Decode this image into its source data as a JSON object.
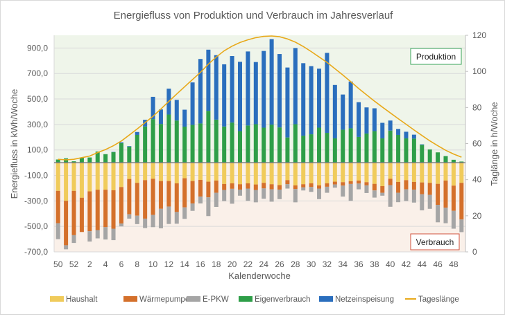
{
  "chart_data": {
    "type": "bar",
    "stacked": true,
    "title": "Energiefluss von Produktion und Verbrauch im Jahresverlauf",
    "xlabel": "Kalenderwoche",
    "ylabel": "Energiefluss in kWh/Woche",
    "ylabel_right": "Taglänge in h/Woche",
    "ylim": [
      -700,
      1000
    ],
    "ylim_right": [
      0,
      120
    ],
    "yticks": [
      "-700,0",
      "-500,0",
      "-300,0",
      "-100,0",
      "100,0",
      "300,0",
      "500,0",
      "700,0",
      "900,0"
    ],
    "yticks_right": [
      "0",
      "20",
      "40",
      "60",
      "80",
      "100",
      "120"
    ],
    "grid": true,
    "legend_position": "bottom",
    "categories": [
      50,
      51,
      52,
      1,
      2,
      3,
      4,
      5,
      6,
      7,
      8,
      9,
      10,
      11,
      12,
      13,
      14,
      15,
      16,
      17,
      18,
      19,
      20,
      21,
      22,
      23,
      24,
      25,
      26,
      27,
      28,
      29,
      30,
      31,
      32,
      33,
      34,
      35,
      36,
      37,
      38,
      39,
      40,
      41,
      42,
      43,
      44,
      45,
      46,
      47,
      48,
      49
    ],
    "xtick_labels": [
      "50",
      "52",
      "2",
      "4",
      "6",
      "8",
      "10",
      "12",
      "14",
      "16",
      "18",
      "20",
      "22",
      "24",
      "26",
      "28",
      "30",
      "32",
      "34",
      "36",
      "38",
      "40",
      "42",
      "44",
      "46",
      "48"
    ],
    "annotations": {
      "production": "Produktion",
      "consumption": "Verbrauch"
    },
    "series": [
      {
        "name": "Haushalt",
        "axis": "left",
        "color": "#f0cb5b",
        "values": [
          -221,
          -299,
          -221,
          -275,
          -225,
          -212,
          -212,
          -216,
          -191,
          -128,
          -158,
          -137,
          -126,
          -144,
          -144,
          -162,
          -122,
          -144,
          -135,
          -149,
          -140,
          -167,
          -162,
          -169,
          -162,
          -171,
          -158,
          -169,
          -176,
          -137,
          -178,
          -169,
          -162,
          -178,
          -162,
          -149,
          -153,
          -146,
          -140,
          -153,
          -166,
          -184,
          -126,
          -151,
          -137,
          -151,
          -155,
          -158,
          -166,
          -140,
          -180,
          -158
        ]
      },
      {
        "name": "Wärmepumpe",
        "axis": "left",
        "color": "#d4702b",
        "values": [
          -254,
          -349,
          -348,
          -269,
          -313,
          -317,
          -294,
          -302,
          -286,
          -277,
          -258,
          -302,
          -284,
          -218,
          -200,
          -225,
          -229,
          -176,
          -131,
          -123,
          -96,
          -47,
          -43,
          -42,
          -41,
          -43,
          -44,
          -40,
          -35,
          -32,
          -29,
          -25,
          -29,
          -25,
          -27,
          -22,
          -27,
          -21,
          -24,
          -25,
          -52,
          -52,
          -50,
          -85,
          -72,
          -61,
          -93,
          -94,
          -165,
          -213,
          -198,
          -288
        ]
      },
      {
        "name": "E-PKW",
        "axis": "left",
        "color": "#a5a5a5",
        "values": [
          -125,
          -32,
          -61,
          0,
          -81,
          -65,
          -97,
          -90,
          -23,
          -34,
          -66,
          -74,
          -96,
          -153,
          -137,
          -92,
          -90,
          -58,
          -54,
          -147,
          -111,
          -88,
          -117,
          -48,
          -96,
          -97,
          -81,
          -97,
          -75,
          -34,
          -104,
          -24,
          -38,
          -83,
          -47,
          -25,
          -86,
          -132,
          -45,
          -60,
          -56,
          -23,
          -170,
          -74,
          -92,
          -101,
          -126,
          -110,
          -137,
          -122,
          -140,
          -99
        ]
      },
      {
        "name": "Eigenverbrauch",
        "axis": "left",
        "color": "#2e9e48",
        "values": [
          25,
          34,
          11,
          40,
          41,
          88,
          67,
          83,
          153,
          126,
          218,
          284,
          342,
          304,
          378,
          331,
          283,
          297,
          308,
          407,
          338,
          284,
          315,
          248,
          292,
          302,
          275,
          299,
          277,
          198,
          302,
          212,
          223,
          275,
          234,
          191,
          259,
          270,
          202,
          229,
          248,
          191,
          252,
          218,
          191,
          189,
          140,
          104,
          81,
          52,
          23,
          9
        ]
      },
      {
        "name": "Netzeinspeisung",
        "axis": "left",
        "color": "#2a6ebd",
        "values": [
          0,
          0,
          0,
          0,
          0,
          0,
          0,
          2,
          7,
          4,
          23,
          53,
          175,
          114,
          203,
          162,
          133,
          333,
          506,
          480,
          506,
          488,
          522,
          544,
          581,
          488,
          602,
          671,
          576,
          549,
          598,
          569,
          535,
          463,
          628,
          419,
          276,
          367,
          273,
          205,
          179,
          122,
          79,
          47,
          52,
          31,
          4,
          0,
          0,
          0,
          0,
          0
        ]
      },
      {
        "name": "Tageslänge",
        "axis": "right",
        "type": "line",
        "color": "#e8a91a",
        "values": [
          51.3,
          51.0,
          51.3,
          52.2,
          53.1,
          55.0,
          56.7,
          58.8,
          61.4,
          64.7,
          68.1,
          71.6,
          75.1,
          79.2,
          83.4,
          87.5,
          91.5,
          95.5,
          99.5,
          104,
          108,
          111.4,
          114,
          116,
          117.5,
          118.7,
          119.4,
          119.6,
          119.2,
          118,
          116.2,
          113.8,
          111,
          108,
          105,
          101.5,
          98,
          94.3,
          90.5,
          87,
          83.5,
          80.2,
          77,
          73.8,
          70.7,
          67.5,
          64.5,
          61.5,
          58.8,
          56.3,
          54.2,
          52.5
        ]
      }
    ]
  }
}
